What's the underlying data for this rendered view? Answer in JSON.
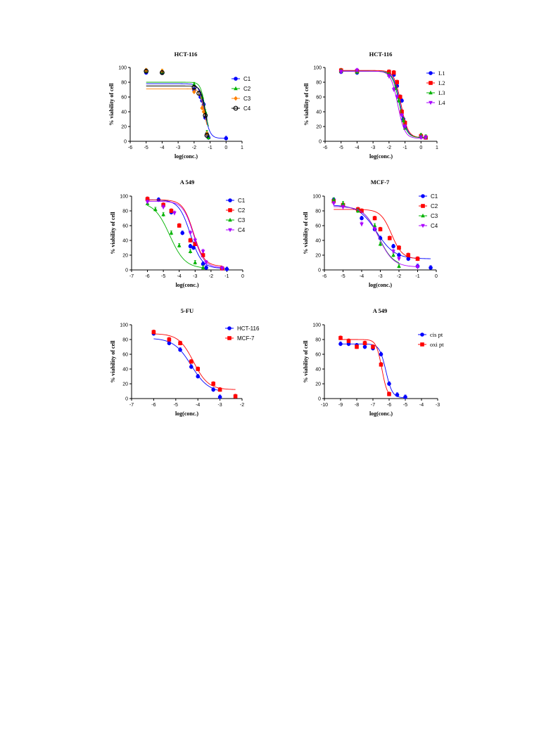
{
  "chart_data": [
    {
      "type": "scatter",
      "title": "HCT-116",
      "xlabel": "log(conc.)",
      "ylabel": "% viability of cell",
      "xlim": [
        -6,
        1
      ],
      "ylim": [
        0,
        100
      ],
      "xticks": [
        -6,
        -5,
        -4,
        -3,
        -2,
        -1,
        0,
        1
      ],
      "yticks": [
        0,
        20,
        40,
        60,
        80,
        100
      ],
      "legend_position": "right",
      "series": [
        {
          "name": "C1",
          "color": "#0000ff",
          "marker": "circle",
          "x": [
            -5,
            -4,
            -2,
            -1.6,
            -1.5,
            -1.4,
            -1.3,
            -1.2,
            -1.1,
            0
          ],
          "y": [
            93,
            93,
            70,
            60,
            55,
            50,
            32,
            10,
            5,
            4
          ],
          "fit": {
            "top": 78,
            "bottom": 4,
            "logec50": -1.35,
            "hill": 2.5
          }
        },
        {
          "name": "C2",
          "color": "#00b300",
          "marker": "triangle",
          "x": [
            -5,
            -4,
            -2,
            -1.5,
            -1.3,
            -1.2,
            -1.1
          ],
          "y": [
            95,
            94,
            77,
            60,
            40,
            12,
            5
          ],
          "fit": {
            "top": 80,
            "bottom": 5,
            "logec50": -1.3,
            "hill": 3
          }
        },
        {
          "name": "C3",
          "color": "#ff8000",
          "marker": "diamond",
          "x": [
            -5,
            -4,
            -2,
            -1.5,
            -1.4,
            -1.2
          ],
          "y": [
            96,
            95,
            67,
            45,
            40,
            10
          ],
          "fit": {
            "top": 71,
            "bottom": 5,
            "logec50": -1.35,
            "hill": 3
          }
        },
        {
          "name": "C4",
          "color": "#000000",
          "marker": "open-circle",
          "x": [
            -5,
            -4,
            -2,
            -1.7,
            -1.3,
            -1.2
          ],
          "y": [
            95,
            93,
            73,
            65,
            35,
            8
          ],
          "fit": {
            "top": 75,
            "bottom": 5,
            "logec50": -1.3,
            "hill": 3
          }
        }
      ]
    },
    {
      "type": "scatter",
      "title": "HCT-116",
      "xlabel": "log(conc.)",
      "ylabel": "% viability of cell",
      "xlim": [
        -6,
        1
      ],
      "ylim": [
        0,
        100
      ],
      "xticks": [
        -6,
        -5,
        -4,
        -3,
        -2,
        -1,
        0,
        1
      ],
      "yticks": [
        0,
        20,
        40,
        60,
        80,
        100
      ],
      "legend_position": "right",
      "series": [
        {
          "name": "L1",
          "color": "#0000ff",
          "marker": "circle",
          "x": [
            -5,
            -4,
            -2,
            -1.7,
            -1.5,
            -1.3,
            -1.2,
            -1.1,
            -1,
            0,
            0.3
          ],
          "y": [
            94,
            93,
            92,
            90,
            75,
            60,
            55,
            30,
            20,
            6,
            5
          ],
          "fit": {
            "top": 95,
            "bottom": 5,
            "logec50": -1.3,
            "hill": 2
          }
        },
        {
          "name": "L2",
          "color": "#ff0000",
          "marker": "square",
          "x": [
            -5,
            -4,
            -2,
            -1.7,
            -1.5,
            -1.3,
            -1.2,
            -1,
            0,
            0.3
          ],
          "y": [
            96,
            95,
            94,
            93,
            80,
            60,
            40,
            25,
            7,
            5
          ],
          "fit": {
            "top": 96,
            "bottom": 5,
            "logec50": -1.25,
            "hill": 2
          }
        },
        {
          "name": "L3",
          "color": "#00b300",
          "marker": "triangle",
          "x": [
            -5,
            -4,
            -2,
            -1.6,
            -1.4,
            -1.1,
            -1,
            0,
            0.3
          ],
          "y": [
            95,
            94,
            90,
            72,
            55,
            28,
            18,
            8,
            6
          ],
          "fit": {
            "top": 95,
            "bottom": 5,
            "logec50": -1.35,
            "hill": 2
          }
        },
        {
          "name": "L4",
          "color": "#aa00ff",
          "marker": "triangle-down",
          "x": [
            -5,
            -4,
            -2,
            -1.7,
            -1.5,
            -1.2,
            -1,
            0,
            0.3
          ],
          "y": [
            94,
            96,
            88,
            70,
            60,
            35,
            20,
            5,
            5
          ],
          "fit": {
            "top": 95,
            "bottom": 4,
            "logec50": -1.45,
            "hill": 2
          }
        }
      ]
    },
    {
      "type": "scatter",
      "title": "A 549",
      "xlabel": "log(conc.)",
      "ylabel": "% viability of cell",
      "xlim": [
        -7,
        0
      ],
      "ylim": [
        0,
        100
      ],
      "xticks": [
        -7,
        -6,
        -5,
        -4,
        -3,
        -2,
        -1,
        0
      ],
      "yticks": [
        0,
        20,
        40,
        60,
        80,
        100
      ],
      "legend_position": "right",
      "series": [
        {
          "name": "C1",
          "color": "#0000ff",
          "marker": "circle",
          "x": [
            -6,
            -5.3,
            -4.5,
            -3.8,
            -3.3,
            -3.1,
            -2.5,
            -2.3,
            -1.3,
            -1
          ],
          "y": [
            96,
            95,
            78,
            50,
            32,
            30,
            8,
            3,
            2,
            1
          ],
          "fit": {
            "top": 95,
            "bottom": 2,
            "logec50": -3.3,
            "hill": 1.2
          }
        },
        {
          "name": "C2",
          "color": "#ff0000",
          "marker": "square",
          "x": [
            -6,
            -5,
            -4.5,
            -4,
            -3.3,
            -3,
            -2.5,
            -1.3
          ],
          "y": [
            96,
            88,
            80,
            60,
            40,
            35,
            20,
            2
          ],
          "fit": {
            "top": 95,
            "bottom": 5,
            "logec50": -3.1,
            "hill": 1.3
          }
        },
        {
          "name": "C3",
          "color": "#00b300",
          "marker": "triangle",
          "x": [
            -6,
            -5.5,
            -5,
            -4.5,
            -4,
            -3.3,
            -3,
            -2.5
          ],
          "y": [
            90,
            82,
            75,
            50,
            33,
            25,
            10,
            3
          ],
          "fit": {
            "top": 92,
            "bottom": 2,
            "logec50": -4.6,
            "hill": 0.9
          }
        },
        {
          "name": "C4",
          "color": "#aa00ff",
          "marker": "triangle-down",
          "x": [
            -6,
            -5,
            -4.3,
            -3.3,
            -3,
            -2.5,
            -2.3,
            -1.3
          ],
          "y": [
            92,
            85,
            77,
            50,
            40,
            25,
            10,
            2
          ],
          "fit": {
            "top": 93,
            "bottom": 3,
            "logec50": -3.1,
            "hill": 1.3
          }
        }
      ]
    },
    {
      "type": "scatter",
      "title": "MCF-7",
      "xlabel": "log(conc.)",
      "ylabel": "% viability of cell",
      "xlim": [
        -6,
        0
      ],
      "ylim": [
        0,
        100
      ],
      "xticks": [
        -6,
        -5,
        -4,
        -3,
        -2,
        -1,
        0
      ],
      "yticks": [
        0,
        20,
        40,
        60,
        80,
        100
      ],
      "legend_position": "right",
      "series": [
        {
          "name": "C1",
          "color": "#0000ff",
          "marker": "circle",
          "x": [
            -5.5,
            -5,
            -4,
            -3.3,
            -3,
            -2.3,
            -2,
            -1.5,
            -1,
            -0.3
          ],
          "y": [
            95,
            88,
            70,
            55,
            43,
            32,
            20,
            15,
            5,
            3
          ],
          "fit": {
            "top": 88,
            "bottom": 15,
            "logec50": -3.2,
            "hill": 0.9
          }
        },
        {
          "name": "C2",
          "color": "#ff0000",
          "marker": "square",
          "x": [
            -5.5,
            -5,
            -4.2,
            -4,
            -3.3,
            -3,
            -2.5,
            -2,
            -1.5,
            -1
          ],
          "y": [
            93,
            88,
            82,
            80,
            70,
            55,
            43,
            30,
            20,
            15
          ],
          "fit": {
            "top": 82,
            "bottom": 15,
            "logec50": -2.4,
            "hill": 1.5
          }
        },
        {
          "name": "C3",
          "color": "#00b300",
          "marker": "triangle",
          "x": [
            -5.5,
            -5,
            -4.2,
            -3.3,
            -3,
            -2.3,
            -2
          ],
          "y": [
            95,
            90,
            80,
            60,
            35,
            20,
            5
          ],
          "fit": {
            "top": 86,
            "bottom": 5,
            "logec50": -3.1,
            "hill": 1.1
          }
        },
        {
          "name": "C4",
          "color": "#aa00ff",
          "marker": "triangle-down",
          "x": [
            -5.5,
            -5,
            -4,
            -3.3,
            -2.3,
            -2,
            -1
          ],
          "y": [
            90,
            85,
            62,
            55,
            25,
            15,
            4
          ],
          "fit": {
            "top": 86,
            "bottom": 4,
            "logec50": -3.1,
            "hill": 1.1
          }
        }
      ]
    },
    {
      "type": "scatter",
      "title": "5-FU",
      "xlabel": "log(conc.)",
      "ylabel": "% viability of cell",
      "xlim": [
        -7,
        -2
      ],
      "ylim": [
        0,
        100
      ],
      "xticks": [
        -7,
        -6,
        -5,
        -4,
        -3,
        -2
      ],
      "yticks": [
        0,
        20,
        40,
        60,
        80,
        100
      ],
      "legend_position": "right",
      "series": [
        {
          "name": "HCT-116",
          "color": "#0000ff",
          "marker": "circle",
          "x": [
            -6,
            -5.3,
            -4.8,
            -4.3,
            -4,
            -3.3,
            -3
          ],
          "y": [
            88,
            75,
            66,
            43,
            30,
            12,
            2
          ],
          "fit": {
            "top": 82,
            "bottom": 8,
            "logec50": -4.3,
            "hill": 1.1
          }
        },
        {
          "name": "MCF-7",
          "color": "#ff0000",
          "marker": "square",
          "x": [
            -6,
            -5.3,
            -4.8,
            -4.3,
            -4,
            -3.3,
            -3,
            -2.3
          ],
          "y": [
            90,
            80,
            75,
            50,
            40,
            20,
            12,
            3
          ],
          "fit": {
            "top": 88,
            "bottom": 12,
            "logec50": -4.2,
            "hill": 1.3
          }
        }
      ]
    },
    {
      "type": "scatter",
      "title": "A 549",
      "xlabel": "log(conc.)",
      "ylabel": "% viability of cell",
      "xlim": [
        -10,
        -3
      ],
      "ylim": [
        0,
        100
      ],
      "xticks": [
        -10,
        -9,
        -8,
        -7,
        -6,
        -5,
        -4,
        -3
      ],
      "yticks": [
        0,
        20,
        40,
        60,
        80,
        100
      ],
      "legend_position": "right",
      "series": [
        {
          "name": "cis pt",
          "color": "#0000ff",
          "marker": "circle",
          "x": [
            -9,
            -8.5,
            -8,
            -7.5,
            -7,
            -6.5,
            -6,
            -5.5,
            -5
          ],
          "y": [
            74,
            74,
            72,
            70,
            68,
            60,
            20,
            5,
            2
          ],
          "fit": {
            "top": 74,
            "bottom": 1,
            "logec50": -6.2,
            "hill": 2.2
          }
        },
        {
          "name": "oxi pt",
          "color": "#ff0000",
          "marker": "square",
          "x": [
            -9,
            -8.5,
            -8,
            -7.5,
            -7,
            -6.5,
            -6
          ],
          "y": [
            82,
            78,
            70,
            75,
            70,
            46,
            6
          ],
          "fit": {
            "top": 80,
            "bottom": 1,
            "logec50": -6.45,
            "hill": 2.5
          }
        }
      ]
    }
  ]
}
